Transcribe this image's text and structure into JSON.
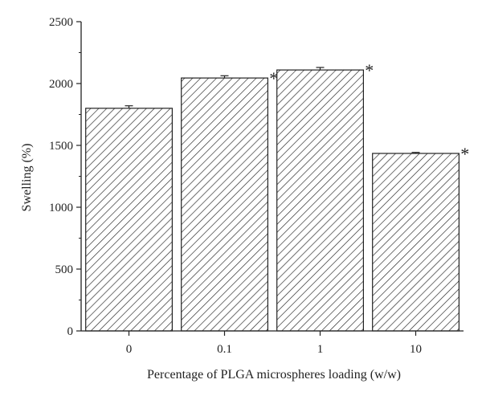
{
  "chart_data": {
    "type": "bar",
    "title": "",
    "xlabel": "Percentage of PLGA microspheres loading (w/w)",
    "ylabel": "Swelling (%)",
    "categories": [
      "0",
      "0.1",
      "1",
      "10"
    ],
    "values": [
      1800,
      2045,
      2110,
      1435
    ],
    "errors": [
      20,
      18,
      20,
      8
    ],
    "significance": [
      "",
      "*",
      "*",
      "*"
    ],
    "ylim": [
      0,
      2500
    ],
    "yticks": [
      0,
      500,
      1000,
      1500,
      2000,
      2500
    ],
    "grid": false,
    "legend": "none",
    "bar_fill": "diagonal-hatch",
    "colors": {
      "bar_stroke": "#222222",
      "hatch": "#222222",
      "axis": "#222222",
      "background": "#ffffff"
    }
  }
}
